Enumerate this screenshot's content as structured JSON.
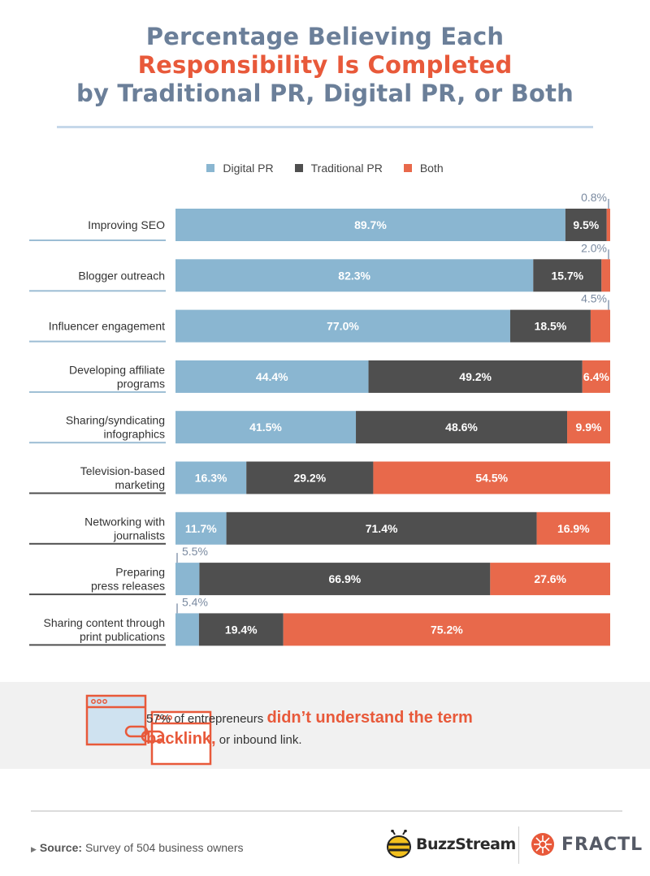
{
  "title": {
    "line1": "Percentage Believing Each",
    "line2": "Responsibility Is Completed",
    "line3": "by Traditional PR, Digital PR, or Both"
  },
  "colors": {
    "digital": "#8ab6d1",
    "traditional": "#4f4f4f",
    "both": "#e8694b",
    "title_accent": "#e8593a",
    "title_primary": "#6b7f99"
  },
  "chart_data": {
    "type": "bar",
    "orientation": "horizontal",
    "stacked": true,
    "title": "Percentage Believing Each Responsibility Is Completed by Traditional PR, Digital PR, or Both",
    "legend_position": "top",
    "categories": [
      "Improving SEO",
      "Blogger outreach",
      "Influencer engagement",
      "Developing affiliate programs",
      "Sharing/syndicating infographics",
      "Television-based marketing",
      "Networking with journalists",
      "Preparing press releases",
      "Sharing content through print publications"
    ],
    "series": [
      {
        "name": "Digital PR",
        "values": [
          89.7,
          82.3,
          77.0,
          44.4,
          41.5,
          16.3,
          11.7,
          5.5,
          5.4
        ]
      },
      {
        "name": "Traditional PR",
        "values": [
          9.5,
          15.7,
          18.5,
          49.2,
          48.6,
          29.2,
          71.4,
          66.9,
          19.4
        ]
      },
      {
        "name": "Both",
        "values": [
          0.8,
          2.0,
          4.5,
          6.4,
          9.9,
          54.5,
          16.9,
          27.6,
          75.2
        ]
      }
    ],
    "category_lines": [
      [
        "Improving SEO"
      ],
      [
        "Blogger outreach"
      ],
      [
        "Influencer engagement"
      ],
      [
        "Developing affiliate",
        "programs"
      ],
      [
        "Sharing/syndicating",
        "infographics"
      ],
      [
        "Television-based",
        "marketing"
      ],
      [
        "Networking with",
        "journalists"
      ],
      [
        "Preparing",
        "press releases"
      ],
      [
        "Sharing content through",
        "print publications"
      ]
    ]
  },
  "callout": {
    "pre": "57% of entrepreneurs ",
    "highlight": "didn’t understand the term backlink,",
    "post": " or inbound link."
  },
  "source": {
    "label": "Source:",
    "text": "Survey of 504 business owners"
  },
  "brands": {
    "buzzstream": "BuzzStream",
    "fractl": "FRACTL"
  },
  "icons": {
    "browser_link": "browser-windows-link-icon",
    "bee": "bee-icon",
    "fractl": "fractl-burst-icon",
    "source_marker": "triangle-right-icon"
  }
}
